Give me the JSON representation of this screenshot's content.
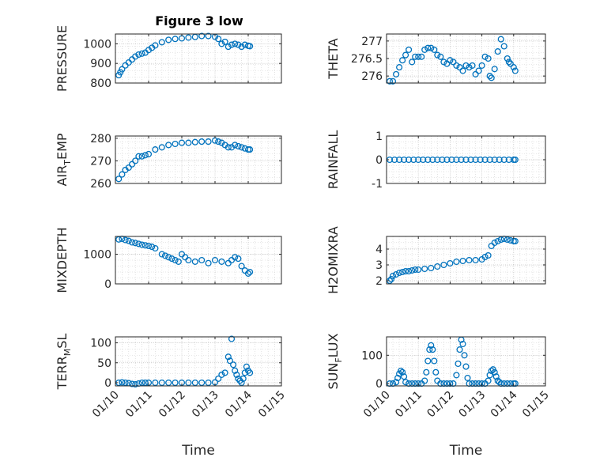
{
  "figure_title": "Figure 3 low",
  "marker_color": "#0072BD",
  "x_ticks": [
    "01/10",
    "01/11",
    "01/12",
    "01/13",
    "01/14",
    "01/15"
  ],
  "chart_data": [
    {
      "type": "scatter",
      "ylabel": "PRESSURE",
      "xlabel": "",
      "title": "Figure 3 low",
      "xlim": [
        0,
        5
      ],
      "ylim": [
        800,
        1050
      ],
      "yticks": [
        800,
        900,
        1000
      ],
      "ytick_labels": [
        "800",
        "900",
        "1000"
      ],
      "x": [
        0.1,
        0.15,
        0.2,
        0.3,
        0.4,
        0.5,
        0.6,
        0.7,
        0.8,
        0.9,
        1.0,
        1.1,
        1.2,
        1.4,
        1.6,
        1.8,
        2.0,
        2.2,
        2.4,
        2.6,
        2.8,
        3.0,
        3.1,
        3.2,
        3.3,
        3.4,
        3.5,
        3.6,
        3.7,
        3.8,
        3.9,
        4.0,
        4.05
      ],
      "y": [
        840,
        855,
        870,
        890,
        905,
        920,
        935,
        945,
        950,
        955,
        968,
        980,
        992,
        1008,
        1020,
        1025,
        1028,
        1032,
        1035,
        1040,
        1040,
        1036,
        1025,
        1000,
        1010,
        985,
        995,
        1000,
        995,
        985,
        995,
        990,
        988
      ]
    },
    {
      "type": "scatter",
      "ylabel": "THETA",
      "xlabel": "",
      "xlim": [
        0,
        5
      ],
      "ylim": [
        275.8,
        277.2
      ],
      "yticks": [
        276,
        276.5,
        277
      ],
      "ytick_labels": [
        "276",
        "276.5",
        "277"
      ],
      "x": [
        0.1,
        0.2,
        0.3,
        0.4,
        0.5,
        0.6,
        0.7,
        0.8,
        0.9,
        1.0,
        1.1,
        1.2,
        1.3,
        1.4,
        1.5,
        1.6,
        1.7,
        1.8,
        1.9,
        2.0,
        2.1,
        2.2,
        2.3,
        2.4,
        2.5,
        2.6,
        2.7,
        2.8,
        2.9,
        3.0,
        3.1,
        3.2,
        3.25,
        3.3,
        3.4,
        3.5,
        3.6,
        3.7,
        3.8,
        3.85,
        3.9,
        4.0,
        4.05
      ],
      "y": [
        275.85,
        275.85,
        276.05,
        276.25,
        276.45,
        276.6,
        276.75,
        276.4,
        276.55,
        276.55,
        276.55,
        276.75,
        276.8,
        276.8,
        276.75,
        276.6,
        276.55,
        276.4,
        276.35,
        276.45,
        276.4,
        276.3,
        276.25,
        276.15,
        276.3,
        276.25,
        276.3,
        276.05,
        276.15,
        276.3,
        276.55,
        276.5,
        276.0,
        275.95,
        276.2,
        276.7,
        277.05,
        276.85,
        276.5,
        276.4,
        276.35,
        276.25,
        276.15
      ]
    },
    {
      "type": "scatter",
      "ylabel": "AIR_TEMP",
      "xlabel": "",
      "xlim": [
        0,
        5
      ],
      "ylim": [
        260,
        281
      ],
      "yticks": [
        260,
        270,
        280
      ],
      "ytick_labels": [
        "260",
        "270",
        "280"
      ],
      "x": [
        0.1,
        0.2,
        0.3,
        0.4,
        0.5,
        0.6,
        0.7,
        0.8,
        0.9,
        1.0,
        1.2,
        1.4,
        1.6,
        1.8,
        2.0,
        2.2,
        2.4,
        2.6,
        2.8,
        3.0,
        3.1,
        3.2,
        3.3,
        3.4,
        3.5,
        3.6,
        3.7,
        3.8,
        3.9,
        4.0,
        4.05
      ],
      "y": [
        262,
        264,
        266,
        267,
        268.5,
        270,
        272,
        272,
        272.5,
        273,
        275,
        276,
        277,
        277.5,
        278,
        278,
        278.3,
        278.5,
        278.5,
        279,
        278.5,
        278,
        277,
        276,
        276,
        277,
        276.5,
        276,
        275.5,
        275,
        275
      ]
    },
    {
      "type": "scatter",
      "ylabel": "RAINFALL",
      "xlabel": "",
      "xlim": [
        0,
        5
      ],
      "ylim": [
        -1,
        1
      ],
      "yticks": [
        -1,
        0,
        1
      ],
      "ytick_labels": [
        "-1",
        "0",
        "1"
      ],
      "x": [
        0.1,
        0.25,
        0.4,
        0.55,
        0.7,
        0.85,
        1.0,
        1.15,
        1.3,
        1.45,
        1.6,
        1.75,
        1.9,
        2.05,
        2.2,
        2.35,
        2.5,
        2.65,
        2.8,
        2.95,
        3.1,
        3.25,
        3.4,
        3.55,
        3.7,
        3.85,
        4.0,
        4.05
      ],
      "y": [
        0,
        0,
        0,
        0,
        0,
        0,
        0,
        0,
        0,
        0,
        0,
        0,
        0,
        0,
        0,
        0,
        0,
        0,
        0,
        0,
        0,
        0,
        0,
        0,
        0,
        0,
        0,
        0
      ]
    },
    {
      "type": "scatter",
      "ylabel": "MIXDEPTH",
      "xlabel": "",
      "xlim": [
        0,
        5
      ],
      "ylim": [
        0,
        1600
      ],
      "yticks": [
        0,
        1000
      ],
      "ytick_labels": [
        "0",
        "1000"
      ],
      "x": [
        0.1,
        0.2,
        0.3,
        0.4,
        0.5,
        0.6,
        0.7,
        0.8,
        0.9,
        1.0,
        1.1,
        1.2,
        1.4,
        1.5,
        1.6,
        1.7,
        1.8,
        1.9,
        2.0,
        2.1,
        2.2,
        2.4,
        2.6,
        2.8,
        3.0,
        3.2,
        3.4,
        3.5,
        3.6,
        3.7,
        3.8,
        3.9,
        4.0,
        4.05
      ],
      "y": [
        1500,
        1520,
        1480,
        1450,
        1400,
        1380,
        1350,
        1320,
        1300,
        1280,
        1250,
        1200,
        1000,
        950,
        900,
        850,
        800,
        750,
        1000,
        900,
        800,
        750,
        800,
        700,
        800,
        750,
        700,
        800,
        900,
        850,
        600,
        450,
        350,
        400
      ]
    },
    {
      "type": "scatter",
      "ylabel": "H2OMIXRA",
      "xlabel": "",
      "xlim": [
        0,
        5
      ],
      "ylim": [
        1.8,
        4.8
      ],
      "yticks": [
        2,
        3,
        4
      ],
      "ytick_labels": [
        "2",
        "3",
        "4"
      ],
      "x": [
        0.1,
        0.15,
        0.2,
        0.3,
        0.4,
        0.5,
        0.6,
        0.7,
        0.8,
        0.9,
        1.0,
        1.2,
        1.4,
        1.6,
        1.8,
        2.0,
        2.2,
        2.4,
        2.6,
        2.8,
        3.0,
        3.1,
        3.2,
        3.3,
        3.4,
        3.5,
        3.6,
        3.7,
        3.8,
        3.9,
        4.0,
        4.05
      ],
      "y": [
        2.0,
        2.1,
        2.3,
        2.4,
        2.5,
        2.55,
        2.6,
        2.6,
        2.65,
        2.7,
        2.7,
        2.75,
        2.8,
        2.9,
        3.0,
        3.1,
        3.2,
        3.25,
        3.3,
        3.3,
        3.35,
        3.5,
        3.6,
        4.2,
        4.4,
        4.5,
        4.6,
        4.65,
        4.6,
        4.55,
        4.5,
        4.5
      ]
    },
    {
      "type": "scatter",
      "ylabel": "TERR_MSL",
      "xlabel": "Time",
      "xlim": [
        0,
        5
      ],
      "ylim": [
        -8,
        115
      ],
      "yticks": [
        0,
        50,
        100
      ],
      "ytick_labels": [
        "0",
        "50",
        "100"
      ],
      "x": [
        0.1,
        0.2,
        0.3,
        0.4,
        0.5,
        0.6,
        0.7,
        0.8,
        0.9,
        1.0,
        1.2,
        1.4,
        1.6,
        1.8,
        2.0,
        2.2,
        2.4,
        2.6,
        2.8,
        3.0,
        3.1,
        3.2,
        3.3,
        3.4,
        3.45,
        3.5,
        3.55,
        3.6,
        3.65,
        3.7,
        3.75,
        3.8,
        3.85,
        3.9,
        3.95,
        4.0,
        4.05
      ],
      "y": [
        0,
        1,
        0,
        -1,
        -3,
        -4,
        -2,
        0,
        0,
        0,
        0,
        0,
        0,
        0,
        0,
        0,
        0,
        0,
        0,
        1,
        10,
        20,
        25,
        65,
        55,
        110,
        45,
        30,
        20,
        10,
        5,
        0,
        10,
        25,
        40,
        30,
        25
      ]
    },
    {
      "type": "scatter",
      "ylabel": "SUN_FLUX",
      "xlabel": "Time",
      "xlim": [
        0,
        5
      ],
      "ylim": [
        -8,
        165
      ],
      "yticks": [
        0,
        100
      ],
      "ytick_labels": [
        "0",
        "100"
      ],
      "x": [
        0.1,
        0.2,
        0.3,
        0.35,
        0.4,
        0.45,
        0.5,
        0.55,
        0.6,
        0.7,
        0.8,
        0.9,
        1.0,
        1.1,
        1.2,
        1.25,
        1.3,
        1.35,
        1.4,
        1.45,
        1.5,
        1.55,
        1.6,
        1.7,
        1.8,
        1.9,
        2.0,
        2.1,
        2.2,
        2.25,
        2.3,
        2.35,
        2.4,
        2.45,
        2.5,
        2.55,
        2.6,
        2.7,
        2.8,
        2.9,
        3.0,
        3.1,
        3.2,
        3.25,
        3.3,
        3.35,
        3.4,
        3.45,
        3.5,
        3.55,
        3.6,
        3.7,
        3.8,
        3.9,
        4.0,
        4.05
      ],
      "y": [
        0,
        0,
        5,
        20,
        35,
        45,
        40,
        25,
        5,
        0,
        0,
        0,
        0,
        0,
        10,
        40,
        80,
        120,
        135,
        120,
        80,
        40,
        10,
        0,
        0,
        0,
        0,
        0,
        30,
        70,
        120,
        155,
        140,
        100,
        60,
        20,
        0,
        0,
        0,
        0,
        0,
        0,
        10,
        30,
        45,
        50,
        40,
        25,
        10,
        5,
        0,
        0,
        0,
        0,
        0,
        0
      ]
    }
  ]
}
